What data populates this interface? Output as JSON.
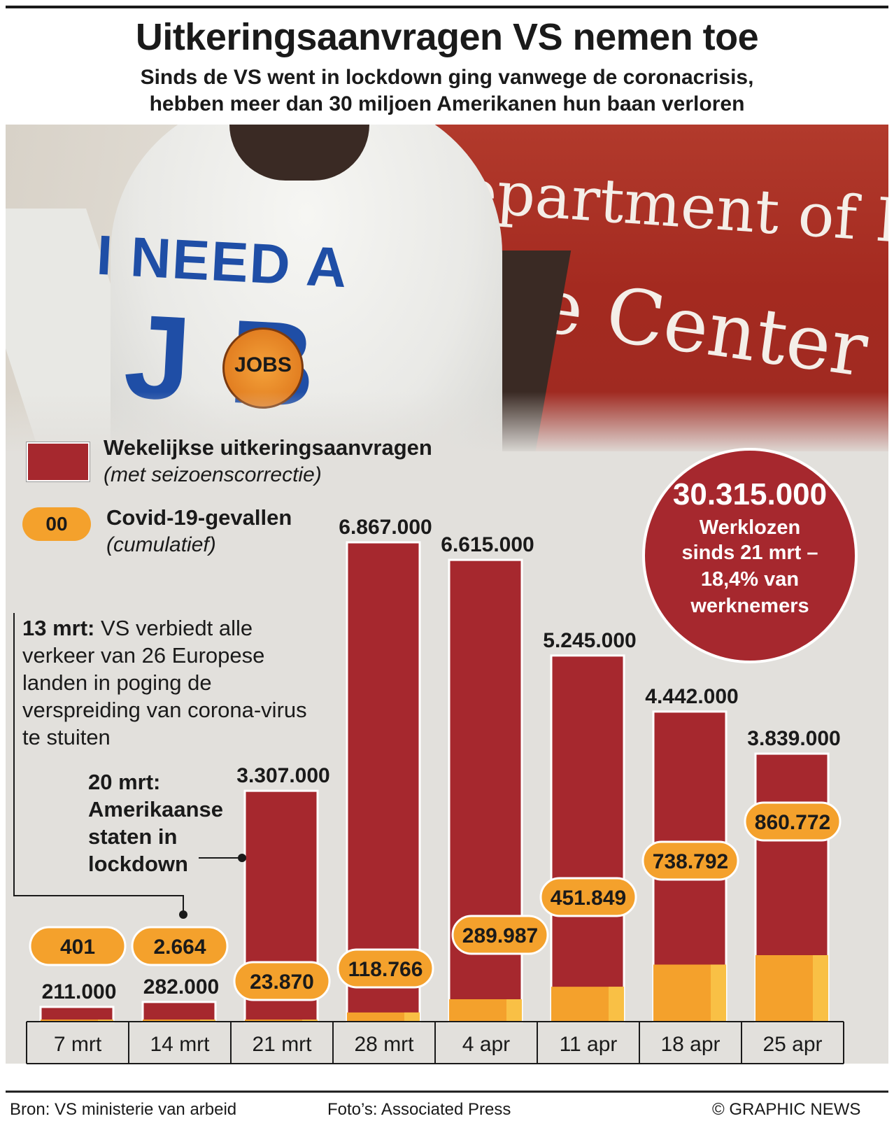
{
  "title": "Uitkeringsaanvragen VS nemen toe",
  "subtitle": [
    "Sinds de VS went in lockdown ging vanwege de coronacrisis,",
    "hebben meer dan 30 miljoen Amerikanen hun baan verloren"
  ],
  "photo": {
    "sign_line1": "VT Department of Labor",
    "sign_line2": "rce Center",
    "shirt_line1": "I NEED A",
    "shirt_line2": "J  B",
    "badge_text": "JOBS"
  },
  "legend": {
    "bars_title": "Wekelijkse uitkeringsaanvragen",
    "bars_sub": "(met seizoenscorrectie)",
    "pill_sample": "00",
    "cases_title": "Covid-19-gevallen",
    "cases_sub": "(cumulatief)"
  },
  "stat": {
    "value": "30.315.000",
    "lines": [
      "Werklozen",
      "sinds 21 mrt –",
      "18,4% van",
      "werknemers"
    ]
  },
  "annotations": {
    "a1_date": "13 mrt:",
    "a1_text": " VS verbiedt alle verkeer van 26 Europese landen in poging de verspreiding van corona-virus te stuiten",
    "a2_lines": [
      "20 mrt:",
      "Amerikaanse",
      "staten in",
      "lockdown"
    ]
  },
  "chart_data": {
    "type": "bar",
    "categories": [
      "7 mrt",
      "14 mrt",
      "21 mrt",
      "28 mrt",
      "4 apr",
      "11 apr",
      "18 apr",
      "25 apr"
    ],
    "series": [
      {
        "name": "Wekelijkse uitkeringsaanvragen",
        "values": [
          211000,
          282000,
          3307000,
          6867000,
          6615000,
          5245000,
          4442000,
          3839000
        ]
      },
      {
        "name": "Covid-19-gevallen",
        "values": [
          401,
          2664,
          23870,
          118766,
          289987,
          451849,
          738792,
          860772
        ]
      }
    ],
    "value_labels": [
      "211.000",
      "282.000",
      "3.307.000",
      "6.867.000",
      "6.615.000",
      "5.245.000",
      "4.442.000",
      "3.839.000"
    ],
    "case_labels": [
      "401",
      "2.664",
      "23.870",
      "118.766",
      "289.987",
      "451.849",
      "738.792",
      "860.772"
    ],
    "ylim": [
      0,
      6867000
    ],
    "colors": {
      "bars": "#a6282e",
      "cases": "#f4a12c",
      "cases_light": "#f9c045",
      "panel": "#e2e0dc"
    }
  },
  "footer": {
    "source": "Bron: VS ministerie van arbeid",
    "photo_credit": "Foto’s: Associated Press",
    "copyright": "© GRAPHIC NEWS"
  }
}
